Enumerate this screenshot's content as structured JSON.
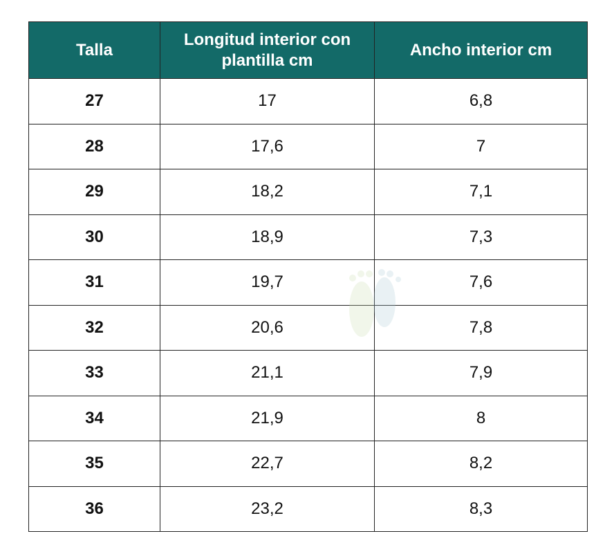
{
  "table": {
    "header": [
      "Talla",
      "Longitud interior con plantilla cm",
      "Ancho interior cm"
    ],
    "rows": [
      [
        "27",
        "17",
        "6,8"
      ],
      [
        "28",
        "17,6",
        "7"
      ],
      [
        "29",
        "18,2",
        "7,1"
      ],
      [
        "30",
        "18,9",
        "7,3"
      ],
      [
        "31",
        "19,7",
        "7,6"
      ],
      [
        "32",
        "20,6",
        "7,8"
      ],
      [
        "33",
        "21,1",
        "7,9"
      ],
      [
        "34",
        "21,9",
        "8"
      ],
      [
        "35",
        "22,7",
        "8,2"
      ],
      [
        "36",
        "23,2",
        "8,3"
      ]
    ]
  }
}
